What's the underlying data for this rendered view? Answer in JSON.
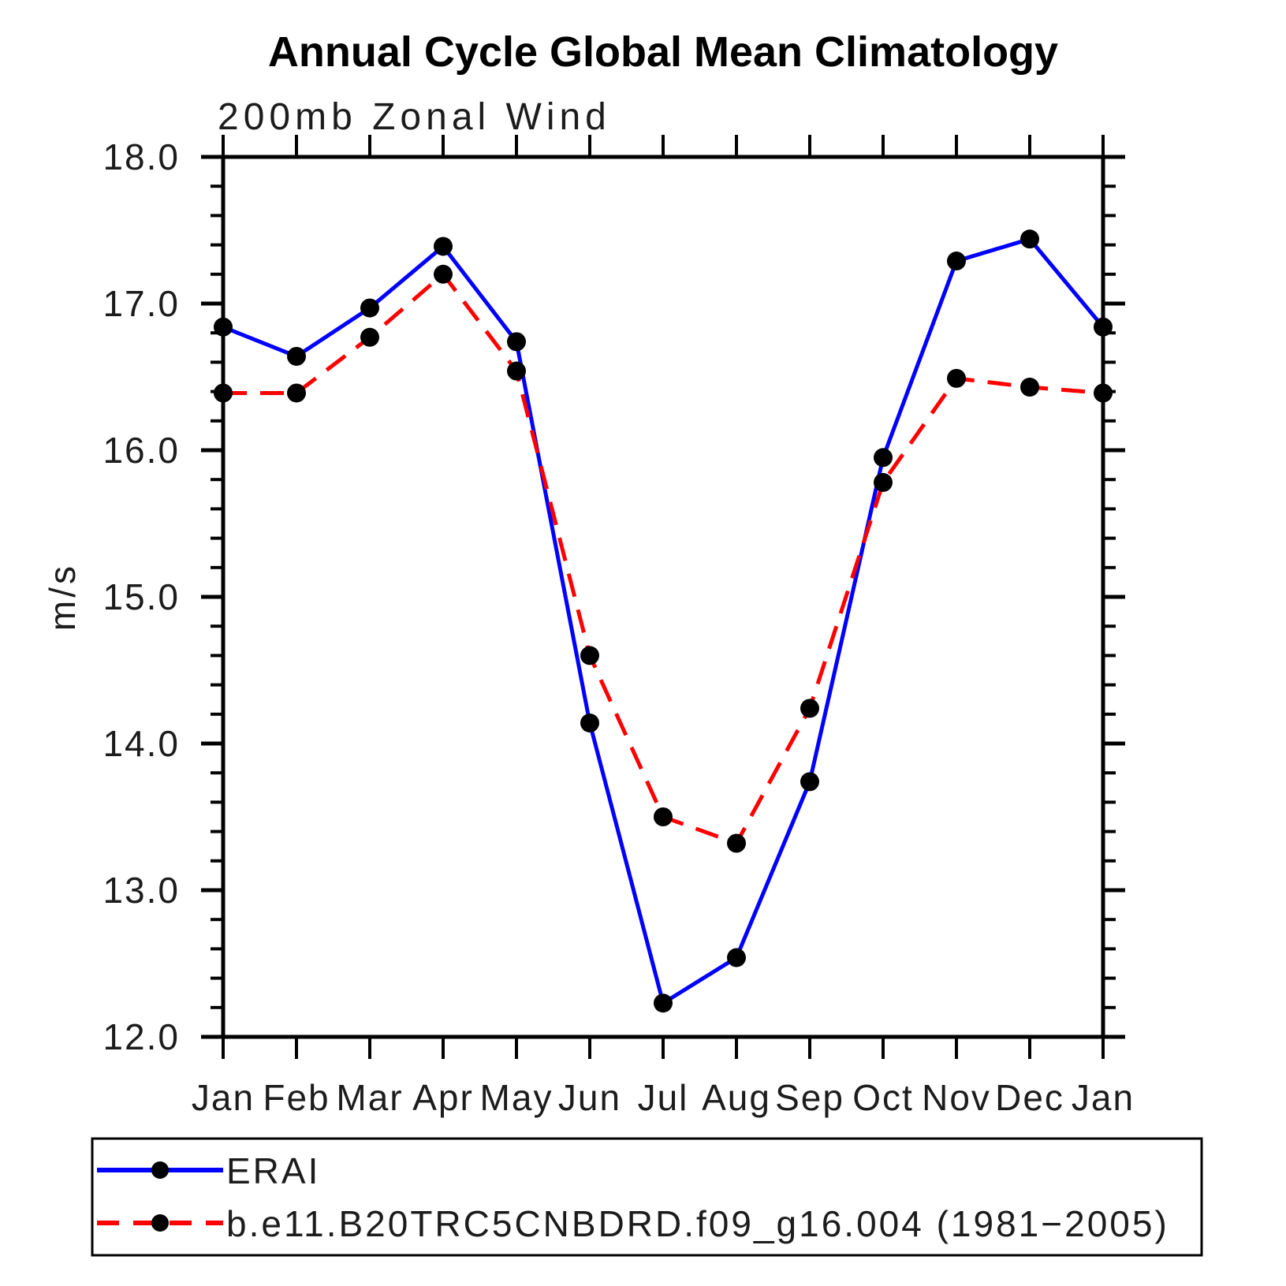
{
  "title": "Annual Cycle Global Mean Climatology",
  "subtitle": "200mb Zonal Wind",
  "ylabel": "m/s",
  "chart_data": {
    "type": "line",
    "title": "Annual Cycle Global Mean Climatology",
    "subtitle": "200mb Zonal Wind",
    "xlabel": "",
    "ylabel": "m/s",
    "categories": [
      "Jan",
      "Feb",
      "Mar",
      "Apr",
      "May",
      "Jun",
      "Jul",
      "Aug",
      "Sep",
      "Oct",
      "Nov",
      "Dec",
      "Jan"
    ],
    "series": [
      {
        "name": "ERAI",
        "line_style": "solid",
        "line_color": "#0000ff",
        "marker": "filled-circle",
        "marker_color": "#000000",
        "values": [
          16.84,
          16.64,
          16.97,
          17.39,
          16.74,
          14.14,
          12.23,
          12.54,
          13.74,
          15.95,
          17.29,
          17.44,
          16.84
        ]
      },
      {
        "name": "b.e11.B20TRC5CNBDRD.f09_g16.004 (1981−2005)",
        "line_style": "dashed",
        "line_color": "#ff0000",
        "marker": "filled-circle",
        "marker_color": "#000000",
        "values": [
          16.39,
          16.39,
          16.77,
          17.2,
          16.54,
          14.6,
          13.5,
          13.32,
          14.24,
          15.78,
          16.49,
          16.43,
          16.39
        ]
      }
    ],
    "ylim": [
      12.0,
      18.0
    ],
    "ytick_major_labels": [
      "12.0",
      "13.0",
      "14.0",
      "15.0",
      "16.0",
      "17.0",
      "18.0"
    ],
    "ytick_major_values": [
      12.0,
      13.0,
      14.0,
      15.0,
      16.0,
      17.0,
      18.0
    ],
    "ytick_minor_step": 0.2,
    "grid": false,
    "frame": "box",
    "ticks_direction": "outward",
    "legend_position": "bottom-box",
    "axis_color": "#000000"
  }
}
